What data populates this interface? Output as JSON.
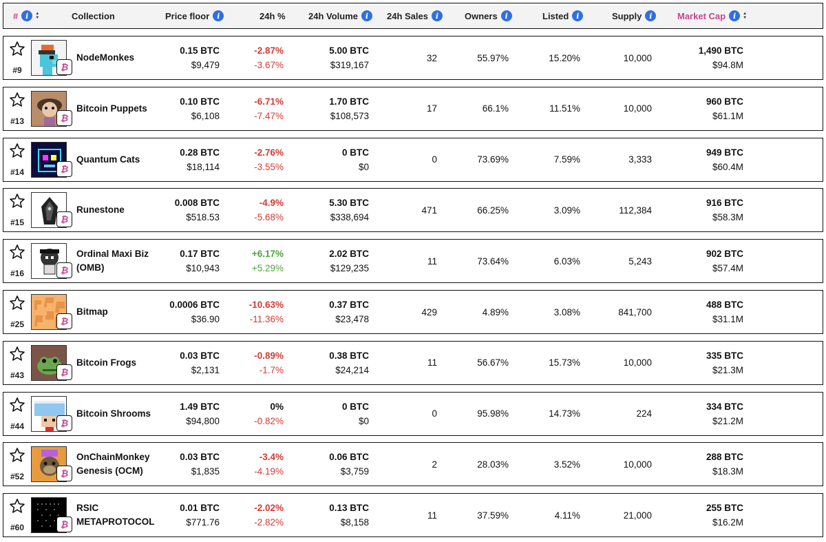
{
  "header": {
    "rank": "#",
    "collection": "Collection",
    "price_floor": "Price floor",
    "change_24h": "24h %",
    "volume_24h": "24h Volume",
    "sales_24h": "24h Sales",
    "owners": "Owners",
    "listed": "Listed",
    "supply": "Supply",
    "market_cap": "Market Cap",
    "info_glyph": "i"
  },
  "colors": {
    "accent_pink": "#c2478f",
    "info_blue": "#2f6fe0",
    "negative": "#d13b34",
    "positive": "#4aa636"
  },
  "icons": {
    "star": "star-outline-icon",
    "chain": "bitcoin-icon",
    "info": "info-icon",
    "sort": "sort-arrows-icon"
  },
  "rows": [
    {
      "rank": "#9",
      "name": "NodeMonkes",
      "floor_btc": "0.15  BTC",
      "floor_usd": "$9,479",
      "chg_btc": "-2.87%",
      "chg_usd": "-3.67%",
      "chg_dir": "neg",
      "vol_btc": "5.00  BTC",
      "vol_usd": "$319,167",
      "sales": "32",
      "owners": "55.97%",
      "listed": "15.20%",
      "supply": "10,000",
      "mcap_btc": "1,490  BTC",
      "mcap_usd": "$94.8M",
      "badge": "₿"
    },
    {
      "rank": "#13",
      "name": "Bitcoin Puppets",
      "floor_btc": "0.10  BTC",
      "floor_usd": "$6,108",
      "chg_btc": "-6.71%",
      "chg_usd": "-7.47%",
      "chg_dir": "neg",
      "vol_btc": "1.70  BTC",
      "vol_usd": "$108,573",
      "sales": "17",
      "owners": "66.1%",
      "listed": "11.51%",
      "supply": "10,000",
      "mcap_btc": "960  BTC",
      "mcap_usd": "$61.1M",
      "badge": "₿"
    },
    {
      "rank": "#14",
      "name": "Quantum Cats",
      "floor_btc": "0.28  BTC",
      "floor_usd": "$18,114",
      "chg_btc": "-2.76%",
      "chg_usd": "-3.55%",
      "chg_dir": "neg",
      "vol_btc": "0  BTC",
      "vol_usd": "$0",
      "sales": "0",
      "owners": "73.69%",
      "listed": "7.59%",
      "supply": "3,333",
      "mcap_btc": "949  BTC",
      "mcap_usd": "$60.4M",
      "badge": "₿"
    },
    {
      "rank": "#15",
      "name": "Runestone",
      "floor_btc": "0.008  BTC",
      "floor_usd": "$518.53",
      "chg_btc": "-4.9%",
      "chg_usd": "-5.68%",
      "chg_dir": "neg",
      "vol_btc": "5.30  BTC",
      "vol_usd": "$338,694",
      "sales": "471",
      "owners": "66.25%",
      "listed": "3.09%",
      "supply": "112,384",
      "mcap_btc": "916  BTC",
      "mcap_usd": "$58.3M",
      "badge": "₿"
    },
    {
      "rank": "#16",
      "name": "Ordinal Maxi Biz (OMB)",
      "floor_btc": "0.17  BTC",
      "floor_usd": "$10,943",
      "chg_btc": "+6.17%",
      "chg_usd": "+5.29%",
      "chg_dir": "pos",
      "vol_btc": "2.02  BTC",
      "vol_usd": "$129,235",
      "sales": "11",
      "owners": "73.64%",
      "listed": "6.03%",
      "supply": "5,243",
      "mcap_btc": "902  BTC",
      "mcap_usd": "$57.4M",
      "badge": "₿"
    },
    {
      "rank": "#25",
      "name": "Bitmap",
      "floor_btc": "0.0006  BTC",
      "floor_usd": "$36.90",
      "chg_btc": "-10.63%",
      "chg_usd": "-11.36%",
      "chg_dir": "neg",
      "vol_btc": "0.37  BTC",
      "vol_usd": "$23,478",
      "sales": "429",
      "owners": "4.89%",
      "listed": "3.08%",
      "supply": "841,700",
      "mcap_btc": "488  BTC",
      "mcap_usd": "$31.1M",
      "badge": "₿"
    },
    {
      "rank": "#43",
      "name": "Bitcoin Frogs",
      "floor_btc": "0.03  BTC",
      "floor_usd": "$2,131",
      "chg_btc": "-0.89%",
      "chg_usd": "-1.7%",
      "chg_dir": "neg",
      "vol_btc": "0.38  BTC",
      "vol_usd": "$24,214",
      "sales": "11",
      "owners": "56.67%",
      "listed": "15.73%",
      "supply": "10,000",
      "mcap_btc": "335  BTC",
      "mcap_usd": "$21.3M",
      "badge": "₿"
    },
    {
      "rank": "#44",
      "name": "Bitcoin Shrooms",
      "floor_btc": "1.49  BTC",
      "floor_usd": "$94,800",
      "chg_btc": "0%",
      "chg_usd": "-0.82%",
      "chg_dir": "zero",
      "vol_btc": "0  BTC",
      "vol_usd": "$0",
      "sales": "0",
      "owners": "95.98%",
      "listed": "14.73%",
      "supply": "224",
      "mcap_btc": "334  BTC",
      "mcap_usd": "$21.2M",
      "badge": "₿"
    },
    {
      "rank": "#52",
      "name": "OnChainMonkey Genesis (OCM)",
      "floor_btc": "0.03  BTC",
      "floor_usd": "$1,835",
      "chg_btc": "-3.4%",
      "chg_usd": "-4.19%",
      "chg_dir": "neg",
      "vol_btc": "0.06  BTC",
      "vol_usd": "$3,759",
      "sales": "2",
      "owners": "28.03%",
      "listed": "3.52%",
      "supply": "10,000",
      "mcap_btc": "288  BTC",
      "mcap_usd": "$18.3M",
      "badge": "₿"
    },
    {
      "rank": "#60",
      "name": "RSIC METAPROTOCOL",
      "floor_btc": "0.01  BTC",
      "floor_usd": "$771.76",
      "chg_btc": "-2.02%",
      "chg_usd": "-2.82%",
      "chg_dir": "neg",
      "vol_btc": "0.13  BTC",
      "vol_usd": "$8,158",
      "sales": "11",
      "owners": "37.59%",
      "listed": "4.11%",
      "supply": "21,000",
      "mcap_btc": "255  BTC",
      "mcap_usd": "$16.2M",
      "badge": "₿"
    }
  ]
}
